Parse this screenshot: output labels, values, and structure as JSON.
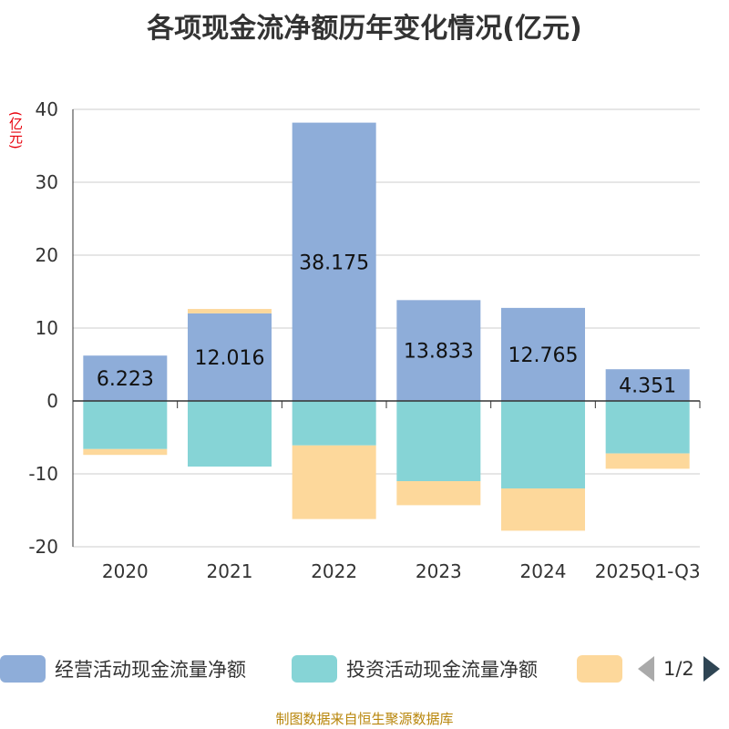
{
  "chart_data": {
    "type": "bar",
    "title": "各项现金流净额历年变化情况(亿元)",
    "ylabel": "(亿元)",
    "xlabel": "",
    "ylim": [
      -20,
      40
    ],
    "yticks": [
      -20,
      -10,
      0,
      10,
      20,
      30,
      40
    ],
    "grid": true,
    "stacked": true,
    "categories": [
      "2020",
      "2021",
      "2022",
      "2023",
      "2024",
      "2025Q1-Q3"
    ],
    "series": [
      {
        "name": "经营活动现金流量净额",
        "color": "#8eadd9",
        "values": [
          6.223,
          12.016,
          38.175,
          13.833,
          12.765,
          4.351
        ],
        "labels_shown": true
      },
      {
        "name": "投资活动现金流量净额",
        "color": "#86d4d6",
        "values": [
          -6.6,
          -9.0,
          -6.1,
          -11.0,
          -12.0,
          -7.2
        ],
        "labels_shown": false
      },
      {
        "name": "",
        "color": "#fdd89b",
        "values": [
          -0.8,
          0.6,
          -10.1,
          -3.3,
          -5.8,
          -2.1
        ],
        "labels_shown": false
      }
    ],
    "legend_position": "bottom"
  },
  "legend": {
    "page_text": "1/2"
  },
  "source": "制图数据来自恒生聚源数据库"
}
